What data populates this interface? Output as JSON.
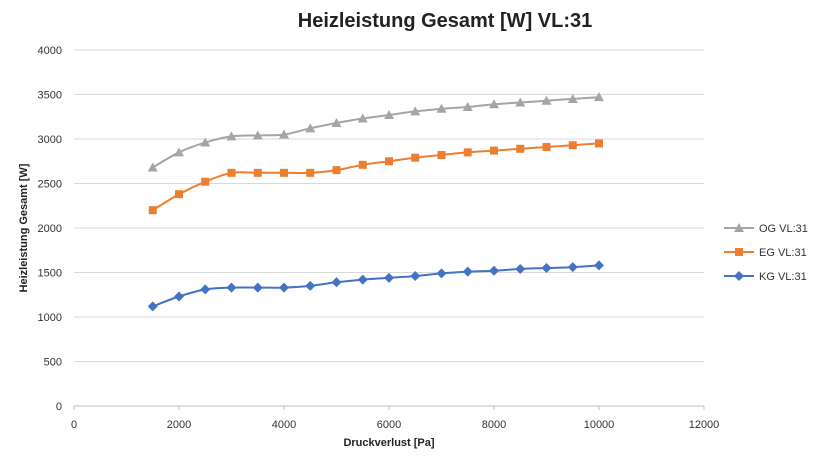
{
  "chart_data": {
    "type": "line",
    "title": "Heizleistung Gesamt [W] VL:31",
    "xlabel": "Druckverlust [Pa]",
    "ylabel": "Heizleistung Gesamt [W]",
    "xlim": [
      0,
      12000
    ],
    "ylim": [
      0,
      4000
    ],
    "xticks": [
      0,
      2000,
      4000,
      6000,
      8000,
      10000,
      12000
    ],
    "yticks": [
      0,
      500,
      1000,
      1500,
      2000,
      2500,
      3000,
      3500,
      4000
    ],
    "grid": "horizontal",
    "legend_position": "right",
    "x": [
      1500,
      2000,
      2500,
      3000,
      3500,
      4000,
      4500,
      5000,
      5500,
      6000,
      6500,
      7000,
      7500,
      8000,
      8500,
      9000,
      9500,
      10000
    ],
    "series": [
      {
        "name": "OG VL:31",
        "color": "#a5a5a5",
        "marker": "triangle",
        "values": [
          2680,
          2850,
          2960,
          3030,
          3040,
          3050,
          3120,
          3180,
          3230,
          3270,
          3310,
          3340,
          3360,
          3390,
          3410,
          3430,
          3450,
          3470
        ]
      },
      {
        "name": "EG VL:31",
        "color": "#ed7d31",
        "marker": "square",
        "values": [
          2200,
          2380,
          2520,
          2620,
          2620,
          2620,
          2620,
          2650,
          2710,
          2750,
          2790,
          2820,
          2850,
          2870,
          2890,
          2910,
          2930,
          2950
        ]
      },
      {
        "name": "KG VL:31",
        "color": "#4472c4",
        "marker": "diamond",
        "values": [
          1120,
          1230,
          1310,
          1330,
          1330,
          1330,
          1350,
          1390,
          1420,
          1440,
          1460,
          1490,
          1510,
          1520,
          1540,
          1550,
          1560,
          1580
        ]
      }
    ]
  }
}
